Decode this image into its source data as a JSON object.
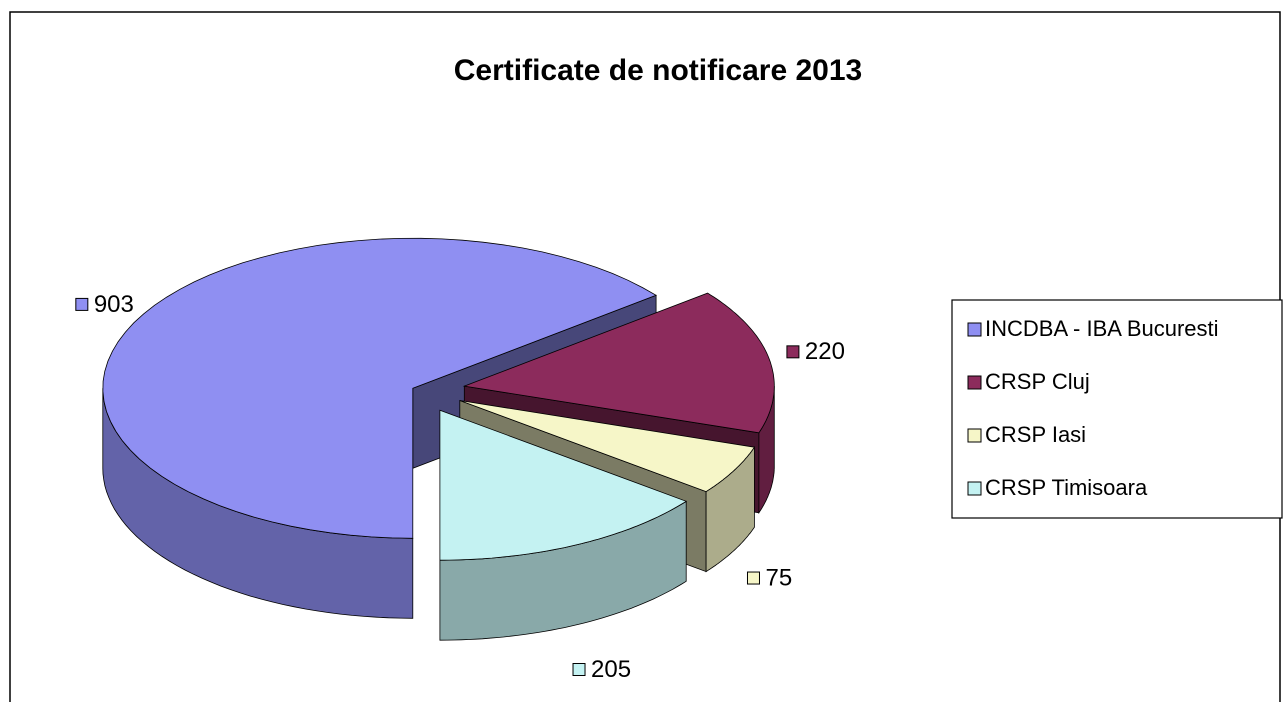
{
  "chart_data": {
    "type": "pie3d",
    "title": "Certificate de notificare 2013",
    "categories": [
      "INCDBA - IBA Bucuresti",
      "CRSP Cluj",
      "CRSP Iasi",
      "CRSP Timisoara"
    ],
    "values": [
      903,
      220,
      75,
      205
    ],
    "colors": [
      "#8f8ff2",
      "#8c2b5c",
      "#f6f6c8",
      "#c4f2f2"
    ],
    "legend": "right"
  }
}
